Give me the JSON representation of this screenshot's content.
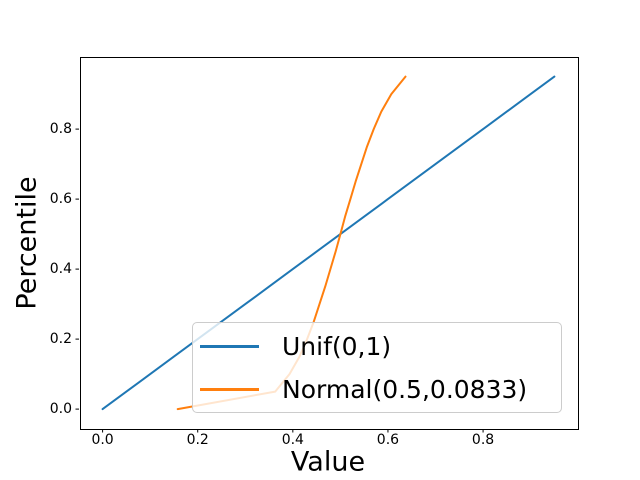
{
  "chart_data": {
    "type": "line",
    "title": "",
    "xlabel": "Value",
    "ylabel": "Percentile",
    "xlim": [
      -0.0475,
      0.9975
    ],
    "ylim": [
      -0.054,
      1.006
    ],
    "grid": false,
    "legend_position": "lower center, inside axes",
    "x_tick_values": [
      0.0,
      0.2,
      0.4,
      0.6,
      0.8
    ],
    "x_tick_labels": [
      "0.0",
      "0.2",
      "0.4",
      "0.6",
      "0.8"
    ],
    "y_tick_values": [
      0.0,
      0.2,
      0.4,
      0.6,
      0.8
    ],
    "y_tick_labels": [
      "0.0",
      "0.2",
      "0.4",
      "0.6",
      "0.8"
    ],
    "y_percentiles": [
      0.0,
      0.05,
      0.1,
      0.15,
      0.2,
      0.25,
      0.3,
      0.35,
      0.4,
      0.45,
      0.5,
      0.55,
      0.6,
      0.65,
      0.7,
      0.75,
      0.8,
      0.85,
      0.9,
      0.95
    ],
    "series": [
      {
        "name": "Unif(0,1)",
        "color": "#1f77b4",
        "x": [
          0.0,
          0.05,
          0.1,
          0.15,
          0.2,
          0.25,
          0.3,
          0.35,
          0.4,
          0.45,
          0.5,
          0.55,
          0.6,
          0.65,
          0.7,
          0.75,
          0.8,
          0.85,
          0.9,
          0.95
        ]
      },
      {
        "name": "Normal(0.5,0.0833)",
        "color": "#ff7f0e",
        "x": [
          0.158,
          0.363,
          0.393,
          0.414,
          0.43,
          0.444,
          0.456,
          0.468,
          0.479,
          0.49,
          0.5,
          0.51,
          0.521,
          0.532,
          0.544,
          0.556,
          0.57,
          0.586,
          0.607,
          0.637
        ]
      }
    ]
  },
  "colors": {
    "spine": "#000000",
    "legend_border": "#cccccc",
    "background": "#ffffff"
  }
}
